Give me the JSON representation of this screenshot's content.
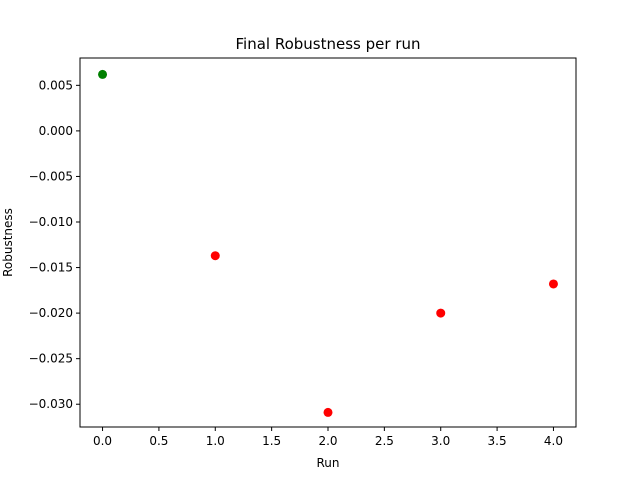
{
  "chart_data": {
    "type": "scatter",
    "title": "Final Robustness per run",
    "xlabel": "Run",
    "ylabel": "Robustness",
    "x_ticks": [
      "0.0",
      "0.5",
      "1.0",
      "1.5",
      "2.0",
      "2.5",
      "3.0",
      "3.5",
      "4.0"
    ],
    "x_tick_values": [
      0,
      0.5,
      1.0,
      1.5,
      2.0,
      2.5,
      3.0,
      3.5,
      4.0
    ],
    "y_ticks": [
      "0.005",
      "0.000",
      "−0.005",
      "−0.010",
      "−0.015",
      "−0.020",
      "−0.025",
      "−0.030"
    ],
    "y_tick_values": [
      0.005,
      0.0,
      -0.005,
      -0.01,
      -0.015,
      -0.02,
      -0.025,
      -0.03
    ],
    "xlim": [
      -0.2,
      4.2
    ],
    "ylim": [
      -0.0325,
      0.008
    ],
    "grid": false,
    "points": [
      {
        "x": 0,
        "y": 0.0062,
        "color": "#008000"
      },
      {
        "x": 1,
        "y": -0.0137,
        "color": "#ff0000"
      },
      {
        "x": 2,
        "y": -0.0309,
        "color": "#ff0000"
      },
      {
        "x": 3,
        "y": -0.02,
        "color": "#ff0000"
      },
      {
        "x": 4,
        "y": -0.0168,
        "color": "#ff0000"
      }
    ]
  }
}
